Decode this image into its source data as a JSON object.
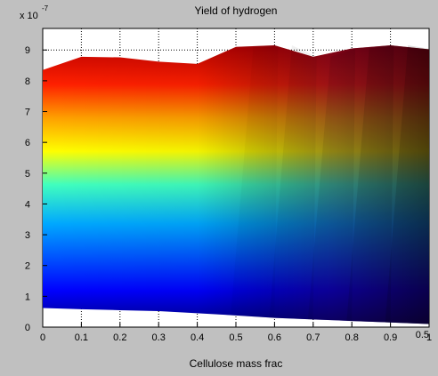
{
  "chart_data": {
    "type": "area",
    "title": "Yield of hydrogen",
    "xlabel": "Cellulose mass frac",
    "ylabel": "",
    "exponent_label": "x 10",
    "exponent_power": "-7",
    "x_ticks": [
      "0",
      "0.1",
      "0.2",
      "0.3",
      "0.4",
      "0.5",
      "0.6",
      "0.7",
      "0.8",
      "0.9",
      "1"
    ],
    "extra_x_tick": "0.5",
    "y_ticks": [
      "0",
      "1",
      "2",
      "3",
      "4",
      "5",
      "6",
      "7",
      "8",
      "9"
    ],
    "xlim": [
      0,
      1
    ],
    "ylim": [
      0,
      9.7
    ],
    "grid": true,
    "colormap": "jet",
    "upper_edge": {
      "x": [
        0,
        0.1,
        0.2,
        0.3,
        0.4,
        0.5,
        0.6,
        0.7,
        0.8,
        0.9,
        1.0
      ],
      "y": [
        8.35,
        8.78,
        8.76,
        8.62,
        8.55,
        9.1,
        9.15,
        8.78,
        9.05,
        9.15,
        9.02
      ]
    },
    "lower_edge": {
      "x": [
        0,
        0.1,
        0.2,
        0.3,
        0.4,
        0.5,
        0.6,
        0.7,
        0.8,
        0.9,
        1.0
      ],
      "y": [
        0.62,
        0.58,
        0.55,
        0.52,
        0.45,
        0.38,
        0.3,
        0.25,
        0.2,
        0.15,
        0.1
      ]
    },
    "colors": {
      "figure_bg": "#c0c0c0",
      "axes_bg": "#ffffff",
      "grid": "#000000"
    }
  }
}
